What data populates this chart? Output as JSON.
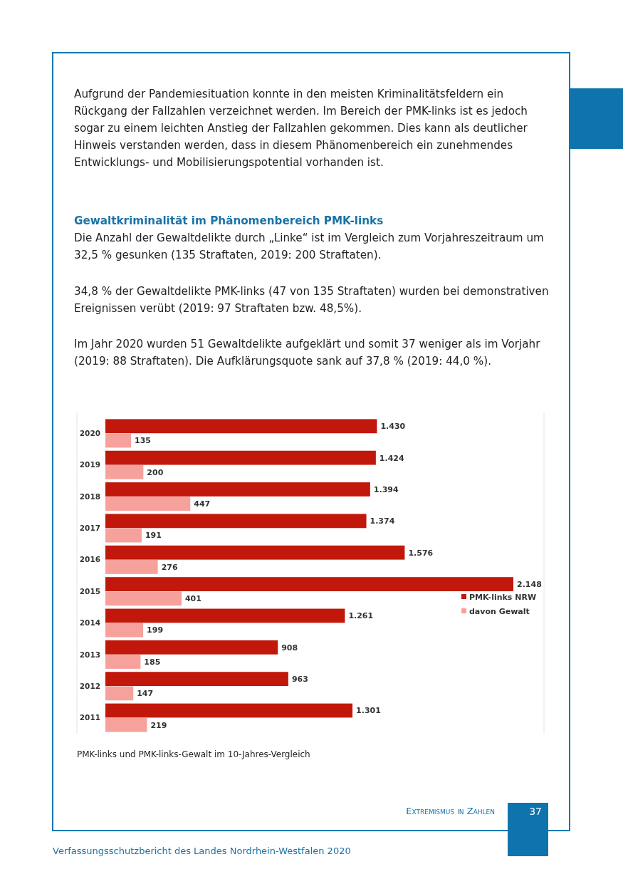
{
  "chart_data": {
    "type": "bar",
    "orientation": "horizontal",
    "legend": "right",
    "categories": [
      "2020",
      "2019",
      "2018",
      "2017",
      "2016",
      "2015",
      "2014",
      "2013",
      "2012",
      "2011"
    ],
    "series": [
      {
        "name": "PMK-links NRW",
        "color": "#c1180b",
        "values": [
          1430,
          1424,
          1394,
          1374,
          1576,
          2148,
          1261,
          908,
          963,
          1301
        ],
        "value_labels": [
          "1.430",
          "1.424",
          "1.394",
          "1.374",
          "1.576",
          "2.148",
          "1.261",
          "908",
          "963",
          "1.301"
        ]
      },
      {
        "name": "davon Gewalt",
        "color": "#f6a19b",
        "values": [
          135,
          200,
          447,
          191,
          276,
          401,
          199,
          185,
          147,
          219
        ],
        "value_labels": [
          "135",
          "200",
          "447",
          "191",
          "276",
          "401",
          "199",
          "185",
          "147",
          "219"
        ]
      }
    ],
    "annotations": [
      "Aufgrund der Pandemiesituation konnte in den meisten Kriminalitätsfeldern ein Rückgang der Fallzahlen verzeichnet werden. Im Bereich der PMK-links ist es jedoch sogar zu einem leichten Anstieg der Fallzahlen gekommen. Dies kann als deutlicher Hinweis verstanden werden, dass in diesem Phänomenbereich ein zunehmendes Entwicklungs- und Mobilisierungspotential vorhanden ist.",
      "Gewaltkriminalität im Phänomenbereich PMK-links",
      "Die Anzahl der Gewaltdelikte durch „Linke“ ist im Vergleich zum Vorjahreszeitraum um 32,5 % gesunken (135 Straftaten, 2019: 200 Straftaten).",
      "34,8 % der Gewaltdelikte PMK-links (47 von 135 Straftaten) wurden bei demonstrativen Ereignissen verübt (2019: 97 Straftaten bzw. 48,5%).",
      "Im Jahr 2020 wurden 51 Gewaltdelikte aufgeklärt und somit 37 weniger als im Vorjahr (2019: 88 Straftaten). Die Aufklärungsquote sank auf 37,8 % (2019: 44,0 %).",
      "PMK-links und PMK-links-Gewalt im 10-Jahres-Vergleich",
      "Extremismus in Zahlen",
      "37",
      "Verfassungsschutzbericht des Landes Nordrhein-Westfalen 2020"
    ]
  }
}
